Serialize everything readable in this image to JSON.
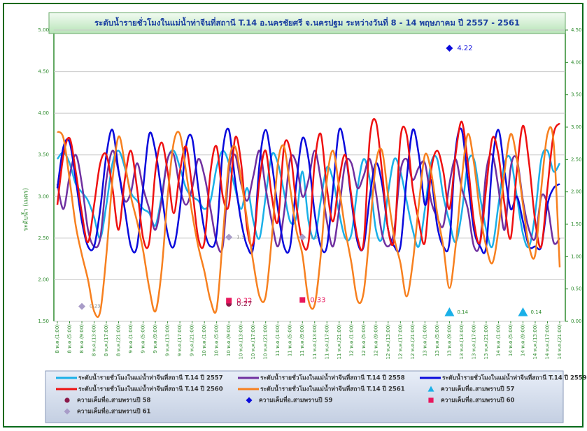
{
  "chart_data": {
    "type": "line",
    "title": "ระดับน้ำรายชั่วโมงในแม่น้ำท่าจีนที่สถานี T.14 อ.นครชัยศรี จ.นครปฐม ระหว่างวันที่  8 - 14 พฤษภาคม ปี 2557 - 2561",
    "y_label": "ระดับน้ำ (เมตร)",
    "ylim": [
      1.5,
      5.0
    ],
    "yticks": [
      {
        "value": 1.5,
        "label": "1.50"
      },
      {
        "value": 2.0,
        "label": "2.00"
      },
      {
        "value": 2.5,
        "label": "2.50"
      },
      {
        "value": 3.0,
        "label": "3.00"
      },
      {
        "value": 3.5,
        "label": "3.50"
      },
      {
        "value": 4.0,
        "label": "4.00"
      },
      {
        "value": 4.5,
        "label": "4.50"
      },
      {
        "value": 5.0,
        "label": "5.00"
      }
    ],
    "y2lim": [
      0,
      4.5
    ],
    "y2ticks": [
      {
        "value": 0,
        "label": "0.00"
      },
      {
        "value": 0.5,
        "label": "0.50"
      },
      {
        "value": 1.0,
        "label": "1.00"
      },
      {
        "value": 1.5,
        "label": "1.50"
      },
      {
        "value": 2.0,
        "label": "2.00"
      },
      {
        "value": 2.5,
        "label": "2.50"
      },
      {
        "value": 3.0,
        "label": "3.00"
      },
      {
        "value": 3.5,
        "label": "3.50"
      },
      {
        "value": 4.0,
        "label": "4.00"
      },
      {
        "value": 4.5,
        "label": "4.50"
      }
    ],
    "grid": true,
    "legend": "bottom",
    "categories": [
      "8 พ.ค.(1:00)",
      null,
      "8 พ.ค.(5:00)",
      null,
      "8 พ.ค.(9:00)",
      null,
      "8 พ.ค.(13:00)",
      null,
      "8 พ.ค.(17:00)",
      null,
      "8 พ.ค.(21:00)",
      null,
      "9 พ.ค.(1:00)",
      null,
      "9 พ.ค.(5:00)",
      null,
      "9 พ.ค.(9:00)",
      null,
      "9 พ.ค.(13:00)",
      null,
      "9 พ.ค.(17:00)",
      null,
      "9 พ.ค.(21:00)",
      null,
      "10 พ.ค.(1:00)",
      null,
      "10 พ.ค.(5:00)",
      null,
      "10 พ.ค.(9:00)",
      null,
      "10 พ.ค.(13:00)",
      null,
      "10 พ.ค.(17:00)",
      null,
      "10 พ.ค.(21:00)",
      null,
      "11 พ.ค.(1:00)",
      null,
      "11 พ.ค.(5:00)",
      null,
      "11 พ.ค.(9:00)",
      null,
      "11 พ.ค.(13:00)",
      null,
      "11 พ.ค.(17:00)",
      null,
      "11 พ.ค.(21:00)",
      null,
      "12 พ.ค.(1:00)",
      null,
      "12 พ.ค.(5:00)",
      null,
      "12 พ.ค.(9:00)",
      null,
      "12 พ.ค.(13:00)",
      null,
      "12 พ.ค.(17:00)",
      null,
      "12 พ.ค.(21:00)",
      null,
      "13 พ.ค.(1:00)",
      null,
      "13 พ.ค.(5:00)",
      null,
      "13 พ.ค.(9:00)",
      null,
      "13 พ.ค.(13:00)",
      null,
      "13 พ.ค.(17:00)",
      null,
      "13 พ.ค.(21:00)",
      null,
      "14 พ.ค.(1:00)",
      null,
      "14 พ.ค.(5:00)",
      null,
      "14 พ.ค.(9:00)",
      null,
      "14 พ.ค.(13:00)",
      null,
      "14 พ.ค.(17:00)",
      null,
      "14 พ.ค.(21:00)"
    ],
    "series": [
      {
        "name": "ระดับน้ำรายชั่วโมงในแม่น้ำท่าจีนที่สถานี T.14 ปี 2557",
        "color": "#1ab0e8",
        "values": [
          3.45,
          3.53,
          3.4,
          3.15,
          3.05,
          2.95,
          2.75,
          2.5,
          2.9,
          3.4,
          3.55,
          3.35,
          3.05,
          2.95,
          2.85,
          2.8,
          2.65,
          3.0,
          3.45,
          3.55,
          3.35,
          3.1,
          3.0,
          2.95,
          2.85,
          2.95,
          3.35,
          3.55,
          3.4,
          3.1,
          2.85,
          3.1,
          2.7,
          2.5,
          3.0,
          3.5,
          3.4,
          3.05,
          2.7,
          2.75,
          3.3,
          2.7,
          2.5,
          2.95,
          3.35,
          3.2,
          2.8,
          2.5,
          2.55,
          3.1,
          3.45,
          3.2,
          2.6,
          2.5,
          3.05,
          3.45,
          3.3,
          2.95,
          2.6,
          2.4,
          2.85,
          3.4,
          3.45,
          3.0,
          2.7,
          2.45,
          2.8,
          3.4,
          3.45,
          3.0,
          2.6,
          2.4,
          2.9,
          3.4,
          3.45,
          3.0,
          2.55,
          2.4,
          2.8,
          3.45,
          3.55,
          3.3,
          3.4
        ]
      },
      {
        "name": "ระดับน้ำรายชั่วโมงในแม่น้ำท่าจีนที่สถานี T.14  ปี 2558",
        "color": "#7030a0",
        "values": [
          3.15,
          2.85,
          3.25,
          3.5,
          3.15,
          2.6,
          2.4,
          2.5,
          3.2,
          3.55,
          3.3,
          2.95,
          3.05,
          3.4,
          3.1,
          2.85,
          2.6,
          2.95,
          3.45,
          3.5,
          3.1,
          2.9,
          3.1,
          3.45,
          3.25,
          2.85,
          2.45,
          2.4,
          3.3,
          3.5,
          3.15,
          2.95,
          3.25,
          3.55,
          3.1,
          2.7,
          2.4,
          2.8,
          3.45,
          3.4,
          3.0,
          3.2,
          3.55,
          3.2,
          2.7,
          2.4,
          2.85,
          3.4,
          3.4,
          3.1,
          3.25,
          3.45,
          3.05,
          2.55,
          2.4,
          2.6,
          3.3,
          3.45,
          3.2,
          3.35,
          3.4,
          2.95,
          2.75,
          2.65,
          3.15,
          3.45,
          3.1,
          2.85,
          2.4,
          2.45,
          3.3,
          3.5,
          3.1,
          2.6,
          3.35,
          3.45,
          2.95,
          2.6,
          2.5,
          3.0,
          2.9,
          2.45,
          2.5
        ]
      },
      {
        "name": "ระดับน้ำรายชั่วโมงในแม่น้ำท่าจีนที่สถานี T.14 ปี 2559",
        "color": "#0a0adc",
        "values": [
          3.1,
          3.6,
          3.65,
          3.2,
          2.7,
          2.4,
          2.4,
          2.85,
          3.5,
          3.8,
          3.3,
          2.85,
          2.4,
          2.4,
          3.1,
          3.75,
          3.55,
          3.05,
          2.55,
          2.4,
          2.85,
          3.6,
          3.7,
          3.1,
          2.6,
          2.4,
          2.55,
          3.55,
          3.8,
          3.2,
          2.7,
          2.4,
          2.4,
          3.4,
          3.8,
          3.4,
          2.85,
          2.4,
          2.4,
          3.15,
          3.7,
          3.45,
          2.8,
          2.4,
          2.4,
          3.1,
          3.8,
          3.55,
          2.95,
          2.45,
          2.4,
          3.0,
          3.4,
          3.15,
          2.6,
          2.4,
          2.4,
          3.2,
          3.8,
          3.5,
          2.9,
          3.2,
          2.65,
          2.4,
          2.45,
          3.55,
          3.8,
          3.2,
          2.6,
          2.4,
          2.4,
          3.4,
          3.8,
          3.3,
          2.85,
          3.0,
          2.7,
          2.4,
          2.4,
          2.4,
          2.9,
          3.1,
          3.15
        ]
      },
      {
        "name": "ระดับน้ำรายชั่วโมงในแม่น้ำท่าจีนที่สถานี T.14 ปี 2560",
        "color": "#ee1111",
        "values": [
          2.9,
          3.5,
          3.7,
          3.3,
          2.8,
          2.45,
          2.9,
          3.4,
          3.5,
          3.1,
          2.6,
          3.2,
          3.55,
          3.1,
          2.5,
          2.45,
          3.3,
          3.65,
          3.3,
          2.8,
          3.3,
          3.6,
          3.1,
          2.5,
          2.45,
          3.3,
          3.6,
          3.0,
          2.9,
          3.7,
          3.4,
          2.6,
          2.45,
          3.2,
          3.55,
          3.0,
          2.7,
          3.6,
          3.55,
          2.9,
          2.45,
          2.45,
          3.4,
          3.75,
          3.1,
          2.7,
          3.2,
          3.5,
          3.0,
          2.5,
          2.45,
          3.7,
          3.9,
          3.3,
          2.6,
          2.5,
          3.7,
          3.75,
          3.1,
          2.7,
          2.45,
          3.3,
          3.55,
          3.3,
          2.85,
          3.5,
          3.9,
          3.4,
          2.7,
          2.45,
          3.1,
          3.7,
          3.5,
          2.9,
          2.5,
          3.3,
          3.85,
          3.4,
          2.7,
          2.4,
          3.1,
          3.75,
          3.88
        ]
      },
      {
        "name": "ระดับน้ำรายชั่วโมงในแม่น้ำท่าจีนที่สถานี T.14 ปี 2561",
        "color": "#f7801f",
        "values": [
          3.78,
          3.7,
          3.2,
          2.65,
          2.3,
          2.0,
          1.62,
          1.62,
          2.3,
          3.2,
          3.72,
          3.4,
          3.0,
          2.7,
          2.35,
          1.9,
          1.62,
          2.1,
          3.0,
          3.65,
          3.75,
          3.3,
          2.8,
          2.4,
          2.1,
          1.75,
          1.65,
          2.5,
          3.4,
          3.6,
          3.2,
          2.7,
          2.2,
          1.8,
          1.8,
          2.5,
          3.4,
          3.6,
          3.1,
          2.6,
          2.3,
          1.75,
          1.7,
          2.3,
          3.2,
          3.55,
          3.1,
          2.6,
          2.2,
          1.75,
          1.85,
          2.6,
          3.4,
          3.55,
          3.0,
          2.5,
          2.2,
          1.8,
          2.2,
          2.9,
          3.5,
          3.3,
          2.8,
          2.4,
          1.9,
          2.4,
          3.2,
          3.75,
          3.4,
          2.8,
          2.4,
          2.2,
          2.6,
          3.3,
          3.75,
          3.45,
          2.9,
          2.4,
          2.3,
          3.1,
          3.75,
          3.65,
          2.15
        ]
      },
      {
        "name": "ความเค็มที่อ.สามพรานปี 57",
        "color": "#1ab0e8",
        "marker": "triangle",
        "axis": "y2",
        "x": [
          "13 พ.ค.(9:00)",
          "14 พ.ค.(9:00)"
        ],
        "values": [
          0.14,
          0.14
        ]
      },
      {
        "name": "ความเค็มที่อ.สามพรานปี 58",
        "color": "#8b1a4a",
        "marker": "circle",
        "axis": "y2",
        "x": [
          "10 พ.ค.(9:00)"
        ],
        "values": [
          0.27
        ]
      },
      {
        "name": "ความเค็มที่อ.สามพรานปี 59",
        "color": "#0a0adc",
        "marker": "diamond",
        "axis": "y2",
        "x": [
          "13 พ.ค.(9:00)"
        ],
        "values": [
          4.22
        ]
      },
      {
        "name": "ความเค็มที่อ.สามพรานปี 60",
        "color": "#e8175d",
        "marker": "square",
        "axis": "y2",
        "x": [
          "10 พ.ค.(9:00)",
          "11 พ.ค.(9:00)"
        ],
        "values": [
          0.32,
          0.33
        ]
      },
      {
        "name": "ความเค็มที่อ.สามพรานปี 61",
        "color": "#a89cc8",
        "marker": "diamond",
        "axis": "y2",
        "x": [
          "8 พ.ค.(9:00)",
          "10 พ.ค.(9:00)",
          "11 พ.ค.(9:00)"
        ],
        "values": [
          0.23,
          1.3,
          1.3
        ]
      }
    ]
  }
}
